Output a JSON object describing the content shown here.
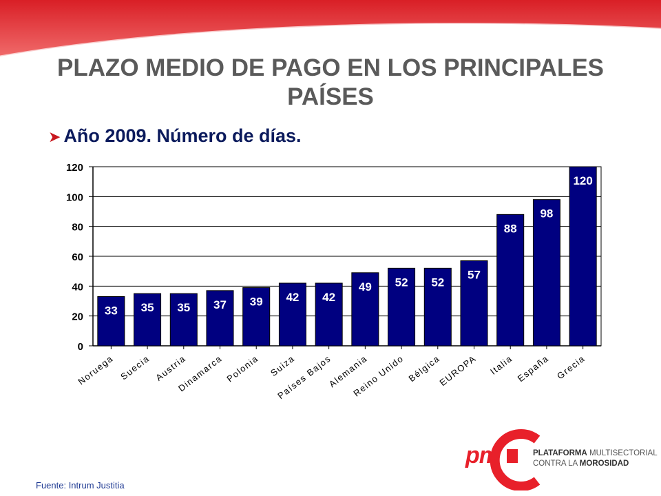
{
  "page": {
    "title": "PLAZO MEDIO DE PAGO EN LOS PRINCIPALES PAÍSES",
    "subtitle": "Año 2009. Número de días.",
    "source": "Fuente: Intrum Justitia"
  },
  "logo": {
    "mark": "pm",
    "line1_bold": "PLATAFORMA",
    "line1_rest": " MULTISECTORIAL",
    "line2_rest": "CONTRA LA ",
    "line2_bold": "MOROSIDAD"
  },
  "colors": {
    "bar": "#000080",
    "accent": "#e8202a",
    "title": "#5a5a5a",
    "subtitle": "#0b1a5c"
  },
  "chart_data": {
    "type": "bar",
    "categories": [
      "Noruega",
      "Suecia",
      "Austria",
      "Dinamarca",
      "Polonia",
      "Suiza",
      "Países Bajos",
      "Alemania",
      "Reino Unido",
      "Bélgica",
      "EUROPA",
      "Italia",
      "España",
      "Grecia"
    ],
    "values": [
      33,
      35,
      35,
      37,
      39,
      42,
      42,
      49,
      52,
      52,
      57,
      88,
      98,
      120
    ],
    "ylim": [
      0,
      120
    ],
    "yticks": [
      0,
      20,
      40,
      60,
      80,
      100,
      120
    ],
    "grid": true,
    "data_labels": true
  }
}
